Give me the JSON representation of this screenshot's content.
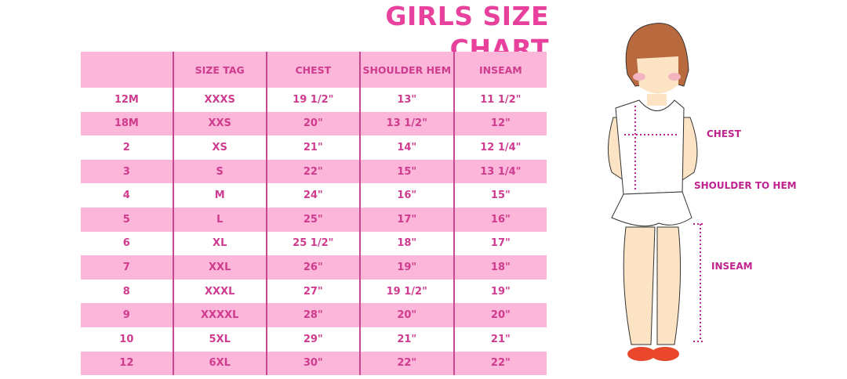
{
  "title": "GIRLS SIZE CHART",
  "table": {
    "headers": [
      "",
      "SIZE TAG",
      "CHEST",
      "SHOULDER HEM",
      "INSEAM"
    ],
    "rows": [
      [
        "12M",
        "XXXS",
        "19 1/2\"",
        "13\"",
        "11 1/2\""
      ],
      [
        "18M",
        "XXS",
        "20\"",
        "13 1/2\"",
        "12\""
      ],
      [
        "2",
        "XS",
        "21\"",
        "14\"",
        "12 1/4\""
      ],
      [
        "3",
        "S",
        "22\"",
        "15\"",
        "13 1/4\""
      ],
      [
        "4",
        "M",
        "24\"",
        "16\"",
        "15\""
      ],
      [
        "5",
        "L",
        "25\"",
        "17\"",
        "16\""
      ],
      [
        "6",
        "XL",
        "25 1/2\"",
        "18\"",
        "17\""
      ],
      [
        "7",
        "XXL",
        "26\"",
        "19\"",
        "18\""
      ],
      [
        "8",
        "XXXL",
        "27\"",
        "19 1/2\"",
        "19\""
      ],
      [
        "9",
        "XXXXL",
        "28\"",
        "20\"",
        "20\""
      ],
      [
        "10",
        "5XL",
        "29\"",
        "21\"",
        "21\""
      ],
      [
        "12",
        "6XL",
        "30\"",
        "22\"",
        "22\""
      ]
    ]
  },
  "figure": {
    "chest_label": "CHEST",
    "shoulder_label": "SHOULDER TO HEM",
    "inseam_label": "INSEAM"
  },
  "colors": {
    "title": "#e8419d",
    "row_pink": "#fbb6d9",
    "text": "#cf3b8e",
    "measure": "#c0228f"
  }
}
